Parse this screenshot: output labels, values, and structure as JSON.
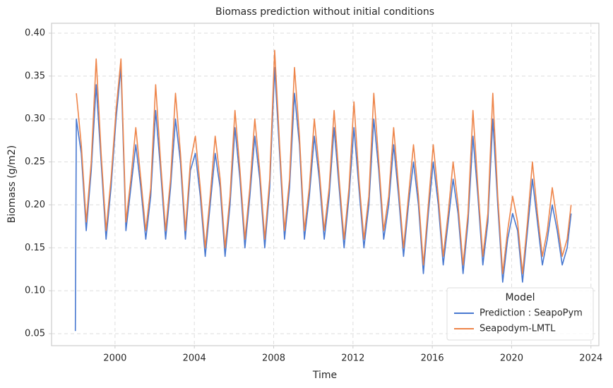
{
  "chart_data": {
    "type": "line",
    "title": "Biomass prediction without initial conditions",
    "x_label": "Time",
    "y_label": "Biomass (g/m2)",
    "xlim": [
      1996.8,
      2024.4
    ],
    "ylim": [
      0.036,
      0.4115
    ],
    "xticks": [
      2000,
      2004,
      2008,
      2012,
      2016,
      2020,
      2024
    ],
    "yticks": [
      0.05,
      {
        "value": 0.1,
        "label": "0.10"
      },
      0.15,
      {
        "value": 0.2,
        "label": "0.20"
      },
      0.25,
      {
        "value": 0.3,
        "label": "0.30"
      },
      0.35,
      {
        "value": 0.4,
        "label": "0.40"
      }
    ],
    "grid": true,
    "legend_title": "Model",
    "legend_position": "lower right",
    "x": [
      1998.0,
      1998.05,
      1998.3,
      1998.55,
      1998.8,
      1999.05,
      1999.3,
      1999.55,
      1999.8,
      2000.05,
      2000.3,
      2000.55,
      2000.8,
      2001.05,
      2001.3,
      2001.55,
      2001.8,
      2002.05,
      2002.3,
      2002.55,
      2002.8,
      2003.05,
      2003.3,
      2003.55,
      2003.8,
      2004.05,
      2004.3,
      2004.55,
      2004.8,
      2005.05,
      2005.3,
      2005.55,
      2005.8,
      2006.05,
      2006.3,
      2006.55,
      2006.8,
      2007.05,
      2007.3,
      2007.55,
      2007.8,
      2008.05,
      2008.3,
      2008.55,
      2008.8,
      2009.05,
      2009.3,
      2009.55,
      2009.8,
      2010.05,
      2010.3,
      2010.55,
      2010.8,
      2011.05,
      2011.3,
      2011.55,
      2011.8,
      2012.05,
      2012.3,
      2012.55,
      2012.8,
      2013.05,
      2013.3,
      2013.55,
      2013.8,
      2014.05,
      2014.3,
      2014.55,
      2014.8,
      2015.05,
      2015.3,
      2015.55,
      2015.8,
      2016.05,
      2016.3,
      2016.55,
      2016.8,
      2017.05,
      2017.3,
      2017.55,
      2017.8,
      2018.05,
      2018.3,
      2018.55,
      2018.8,
      2019.05,
      2019.3,
      2019.55,
      2019.8,
      2020.05,
      2020.3,
      2020.55,
      2020.8,
      2021.05,
      2021.3,
      2021.55,
      2021.8,
      2022.05,
      2022.3,
      2022.55,
      2022.8,
      2023.0
    ],
    "series": [
      {
        "name": "Prediction : SeapoPym",
        "color": "#4878d0",
        "values": [
          0.053,
          0.3,
          0.26,
          0.17,
          0.24,
          0.34,
          0.25,
          0.16,
          0.22,
          0.3,
          0.36,
          0.17,
          0.22,
          0.27,
          0.22,
          0.16,
          0.21,
          0.31,
          0.24,
          0.16,
          0.22,
          0.3,
          0.25,
          0.16,
          0.24,
          0.26,
          0.21,
          0.14,
          0.2,
          0.26,
          0.22,
          0.14,
          0.2,
          0.29,
          0.23,
          0.15,
          0.21,
          0.28,
          0.23,
          0.15,
          0.22,
          0.36,
          0.26,
          0.16,
          0.22,
          0.33,
          0.27,
          0.16,
          0.21,
          0.28,
          0.23,
          0.16,
          0.21,
          0.29,
          0.22,
          0.15,
          0.21,
          0.29,
          0.22,
          0.15,
          0.2,
          0.3,
          0.24,
          0.16,
          0.2,
          0.27,
          0.21,
          0.14,
          0.2,
          0.25,
          0.2,
          0.12,
          0.19,
          0.25,
          0.2,
          0.13,
          0.18,
          0.23,
          0.19,
          0.12,
          0.18,
          0.28,
          0.21,
          0.13,
          0.18,
          0.3,
          0.2,
          0.11,
          0.16,
          0.19,
          0.17,
          0.11,
          0.17,
          0.23,
          0.18,
          0.13,
          0.16,
          0.2,
          0.17,
          0.13,
          0.15,
          0.19
        ]
      },
      {
        "name": "Seapodym-LMTL",
        "color": "#ee854a",
        "values": [
          null,
          0.33,
          0.27,
          0.18,
          0.25,
          0.37,
          0.26,
          0.17,
          0.23,
          0.31,
          0.37,
          0.18,
          0.23,
          0.29,
          0.23,
          0.17,
          0.22,
          0.34,
          0.25,
          0.17,
          0.23,
          0.33,
          0.26,
          0.17,
          0.25,
          0.28,
          0.22,
          0.15,
          0.21,
          0.28,
          0.23,
          0.15,
          0.21,
          0.31,
          0.24,
          0.16,
          0.22,
          0.3,
          0.24,
          0.16,
          0.23,
          0.38,
          0.27,
          0.17,
          0.23,
          0.36,
          0.28,
          0.17,
          0.22,
          0.3,
          0.24,
          0.17,
          0.22,
          0.31,
          0.23,
          0.16,
          0.22,
          0.32,
          0.23,
          0.16,
          0.21,
          0.33,
          0.25,
          0.17,
          0.21,
          0.29,
          0.22,
          0.15,
          0.21,
          0.27,
          0.21,
          0.13,
          0.2,
          0.27,
          0.21,
          0.14,
          0.19,
          0.25,
          0.2,
          0.13,
          0.19,
          0.31,
          0.22,
          0.14,
          0.19,
          0.33,
          0.21,
          0.12,
          0.17,
          0.21,
          0.18,
          0.12,
          0.18,
          0.25,
          0.19,
          0.14,
          0.17,
          0.22,
          0.18,
          0.14,
          0.16,
          0.2
        ]
      }
    ]
  }
}
